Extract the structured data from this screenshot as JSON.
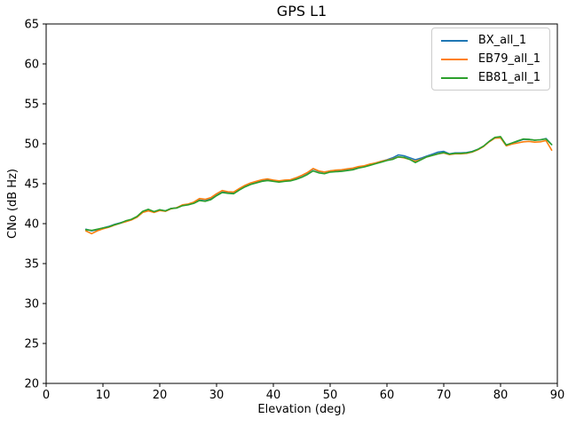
{
  "figure": {
    "background": "#ffffff",
    "text_color": "#000000",
    "spine_color": "#000000",
    "legend_border_color": "#cccccc"
  },
  "chart_data": {
    "type": "line",
    "title": "GPS L1",
    "xlabel": "Elevation (deg)",
    "ylabel": "CNo (dB Hz)",
    "xlim": [
      0,
      90
    ],
    "ylim": [
      20,
      65
    ],
    "xticks": [
      0,
      10,
      20,
      30,
      40,
      50,
      60,
      70,
      80,
      90
    ],
    "yticks": [
      20,
      25,
      30,
      35,
      40,
      45,
      50,
      55,
      60,
      65
    ],
    "grid": false,
    "legend_position": "upper right",
    "x": [
      7,
      8,
      9,
      10,
      11,
      12,
      13,
      14,
      15,
      16,
      17,
      18,
      19,
      20,
      21,
      22,
      23,
      24,
      25,
      26,
      27,
      28,
      29,
      30,
      31,
      32,
      33,
      34,
      35,
      36,
      37,
      38,
      39,
      40,
      41,
      42,
      43,
      44,
      45,
      46,
      47,
      48,
      49,
      50,
      51,
      52,
      53,
      54,
      55,
      56,
      57,
      58,
      59,
      60,
      61,
      62,
      63,
      64,
      65,
      66,
      67,
      68,
      69,
      70,
      71,
      72,
      73,
      74,
      75,
      76,
      77,
      78,
      79,
      80,
      81,
      82,
      83,
      84,
      85,
      86,
      87,
      88,
      89
    ],
    "series": [
      {
        "name": "BX_all_1",
        "color": "#1f77b4",
        "values": [
          39.3,
          39.1,
          39.25,
          39.45,
          39.65,
          39.9,
          40.1,
          40.3,
          40.5,
          40.85,
          41.45,
          41.65,
          41.5,
          41.7,
          41.6,
          41.9,
          42.0,
          42.3,
          42.4,
          42.6,
          42.95,
          42.85,
          43.1,
          43.55,
          43.95,
          43.9,
          43.85,
          44.3,
          44.7,
          45.0,
          45.2,
          45.4,
          45.5,
          45.4,
          45.3,
          45.4,
          45.45,
          45.7,
          46.0,
          46.35,
          46.85,
          46.55,
          46.45,
          46.6,
          46.65,
          46.7,
          46.8,
          46.9,
          47.1,
          47.2,
          47.4,
          47.6,
          47.8,
          48.0,
          48.25,
          48.6,
          48.5,
          48.25,
          48.0,
          48.2,
          48.45,
          48.7,
          48.95,
          49.05,
          48.75,
          48.85,
          48.85,
          48.9,
          49.05,
          49.3,
          49.7,
          50.3,
          50.75,
          50.8,
          49.85,
          50.05,
          50.3,
          50.55,
          50.55,
          50.45,
          50.5,
          50.65,
          49.9
        ]
      },
      {
        "name": "EB79_all_1",
        "color": "#ff7f0e",
        "values": [
          39.1,
          38.75,
          39.1,
          39.35,
          39.55,
          39.8,
          40.05,
          40.25,
          40.45,
          40.8,
          41.4,
          41.6,
          41.4,
          41.65,
          41.55,
          41.85,
          42.0,
          42.35,
          42.45,
          42.7,
          43.15,
          43.05,
          43.25,
          43.75,
          44.15,
          44.0,
          43.95,
          44.4,
          44.8,
          45.1,
          45.3,
          45.5,
          45.6,
          45.45,
          45.35,
          45.45,
          45.5,
          45.75,
          46.05,
          46.4,
          46.9,
          46.6,
          46.45,
          46.6,
          46.7,
          46.75,
          46.85,
          46.95,
          47.15,
          47.25,
          47.45,
          47.6,
          47.8,
          47.95,
          48.1,
          48.35,
          48.25,
          48.05,
          47.8,
          48.05,
          48.35,
          48.55,
          48.75,
          48.85,
          48.65,
          48.75,
          48.75,
          48.8,
          48.95,
          49.25,
          49.65,
          50.25,
          50.7,
          50.75,
          49.75,
          49.95,
          50.1,
          50.25,
          50.3,
          50.2,
          50.25,
          50.4,
          49.2
        ]
      },
      {
        "name": "EB81_all_1",
        "color": "#2ca02c",
        "values": [
          39.25,
          39.15,
          39.3,
          39.45,
          39.6,
          39.85,
          40.05,
          40.35,
          40.55,
          40.9,
          41.55,
          41.8,
          41.5,
          41.75,
          41.6,
          41.9,
          41.95,
          42.25,
          42.35,
          42.55,
          42.9,
          42.8,
          43.0,
          43.5,
          43.9,
          43.8,
          43.75,
          44.2,
          44.6,
          44.9,
          45.1,
          45.3,
          45.4,
          45.3,
          45.2,
          45.3,
          45.35,
          45.55,
          45.8,
          46.15,
          46.6,
          46.35,
          46.25,
          46.45,
          46.5,
          46.55,
          46.65,
          46.75,
          46.95,
          47.1,
          47.3,
          47.5,
          47.7,
          47.9,
          48.05,
          48.35,
          48.3,
          48.05,
          47.65,
          48.0,
          48.35,
          48.55,
          48.75,
          48.9,
          48.7,
          48.8,
          48.8,
          48.85,
          49.0,
          49.3,
          49.7,
          50.3,
          50.8,
          50.9,
          49.85,
          50.1,
          50.35,
          50.6,
          50.55,
          50.45,
          50.5,
          50.6,
          49.9
        ]
      }
    ]
  }
}
